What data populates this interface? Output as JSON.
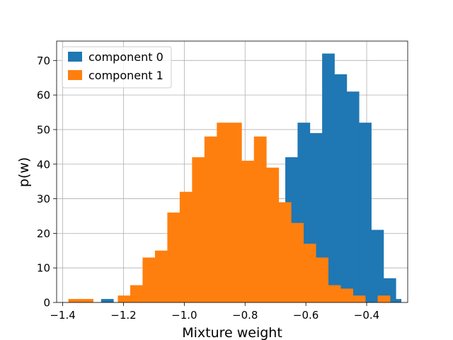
{
  "chart_data": {
    "type": "bar",
    "title": "",
    "xlabel": "Mixture weight",
    "ylabel": "p(w)",
    "xlim": [
      -1.42,
      -0.265
    ],
    "ylim": [
      0,
      75.6
    ],
    "xticks": [
      -1.4,
      -1.2,
      -1.0,
      -0.8,
      -0.6,
      -0.4
    ],
    "xtick_labels": [
      "−1.4",
      "−1.2",
      "−1.0",
      "−0.8",
      "−0.6",
      "−0.4"
    ],
    "yticks": [
      0,
      10,
      20,
      30,
      40,
      50,
      60,
      70
    ],
    "ytick_labels": [
      "0",
      "10",
      "20",
      "30",
      "40",
      "50",
      "60",
      "70"
    ],
    "grid": true,
    "legend_position": "upper-left",
    "series": [
      {
        "name": "component 0",
        "color": "#1f77b4",
        "bin_edges": [
          -1.2737,
          -1.2333,
          -1.1929,
          -1.1525,
          -1.1121,
          -1.0717,
          -1.0313,
          -0.9909,
          -0.9505,
          -0.9101,
          -0.8697,
          -0.8293,
          -0.7889,
          -0.7485,
          -0.7081,
          -0.6677,
          -0.6273,
          -0.5869,
          -0.5465,
          -0.5061,
          -0.4657,
          -0.4253,
          -0.3849,
          -0.3445,
          -0.3041,
          -0.2869
        ],
        "counts": [
          1,
          0,
          0,
          0,
          0,
          0,
          0,
          0,
          0,
          0,
          0,
          0,
          0,
          0,
          0,
          42,
          52,
          49,
          72,
          66,
          61,
          52,
          21,
          7,
          1
        ]
      },
      {
        "name": "component 1",
        "color": "#ff7f0e",
        "bin_edges": [
          -1.3813,
          -1.3406,
          -1.2999,
          -1.2593,
          -1.2186,
          -1.1779,
          -1.1372,
          -1.0965,
          -1.0558,
          -1.0151,
          -0.9744,
          -0.9337,
          -0.893,
          -0.8523,
          -0.8116,
          -0.7709,
          -0.7302,
          -0.6895,
          -0.6488,
          -0.6081,
          -0.5674,
          -0.5267,
          -0.486,
          -0.4453,
          -0.4046,
          -0.3639,
          -0.3232
        ],
        "counts": [
          1,
          1,
          0,
          0,
          2,
          5,
          13,
          15,
          26,
          32,
          42,
          48,
          52,
          52,
          41,
          48,
          39,
          29,
          23,
          17,
          13,
          5,
          4,
          2,
          0,
          2
        ]
      }
    ]
  }
}
